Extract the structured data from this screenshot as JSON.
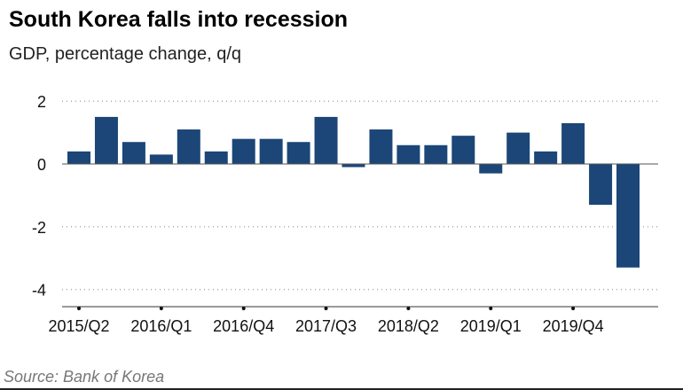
{
  "chart_data": {
    "type": "bar",
    "title": "South Korea falls into recession",
    "subtitle": "GDP, percentage change, q/q",
    "source": "Source: Bank of Korea",
    "xlabel": "",
    "ylabel": "",
    "ylim": [
      -4.5,
      2.2
    ],
    "yticks": [
      2,
      0,
      -2,
      -4
    ],
    "categories": [
      "2015/Q2",
      "2015/Q3",
      "2015/Q4",
      "2016/Q1",
      "2016/Q2",
      "2016/Q3",
      "2016/Q4",
      "2017/Q1",
      "2017/Q2",
      "2017/Q3",
      "2017/Q4",
      "2018/Q1",
      "2018/Q2",
      "2018/Q3",
      "2018/Q4",
      "2019/Q1",
      "2019/Q2",
      "2019/Q3",
      "2019/Q4",
      "2020/Q1",
      "2020/Q2"
    ],
    "xtick_labels": [
      "2015/Q2",
      "2016/Q1",
      "2016/Q4",
      "2017/Q3",
      "2018/Q2",
      "2019/Q1",
      "2019/Q4"
    ],
    "values": [
      0.4,
      1.5,
      0.7,
      0.3,
      1.1,
      0.4,
      0.8,
      0.8,
      0.7,
      1.5,
      -0.1,
      1.1,
      0.6,
      0.6,
      0.9,
      -0.3,
      1.0,
      0.4,
      1.3,
      -1.3,
      -3.3
    ],
    "bar_color": "#1b4677",
    "grid": true
  }
}
